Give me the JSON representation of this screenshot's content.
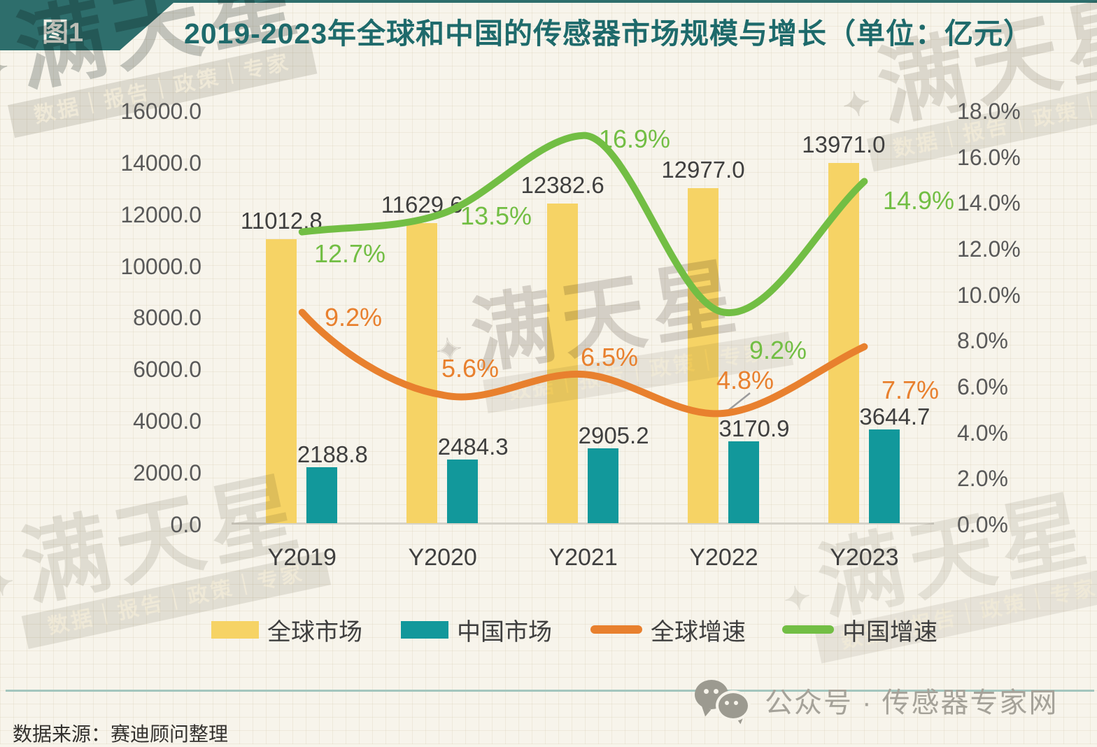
{
  "figure_label": "图1",
  "title": "2019-2023年全球和中国的传感器市场规模与增长（单位：亿元）",
  "source_note": "数据来源：赛迪顾问整理",
  "wechat_badge": "公众号 · 传感器专家网",
  "watermark": {
    "brand": "满天星",
    "star": "✦",
    "tagline": "数据｜报告｜政策｜专家"
  },
  "colors": {
    "background": "#F7F4EB",
    "banner_teal": "#2E6E6C",
    "title_teal": "#1E6A6B",
    "global_bar_yellow": "#F6D365",
    "china_bar_teal": "#12989B",
    "global_growth_orange": "#E8802E",
    "china_growth_green": "#72BE44",
    "axis_text_gray": "#595959",
    "label_text_dark": "#3F3F3F",
    "axis_line_gray": "#D6D3C9",
    "separator_teal": "#A3C6BE",
    "footer_gray": "#A5A299",
    "leader_line_gray": "#9B9B9B"
  },
  "chart_data": {
    "type": "combo-bar-line",
    "categories": [
      "Y2019",
      "Y2020",
      "Y2021",
      "Y2022",
      "Y2023"
    ],
    "series": [
      {
        "name": "全球市场",
        "type": "bar",
        "axis": "left",
        "values": [
          11012.8,
          11629.6,
          12382.6,
          12977.0,
          13971.0
        ]
      },
      {
        "name": "中国市场",
        "type": "bar",
        "axis": "left",
        "values": [
          2188.8,
          2484.3,
          2905.2,
          3170.9,
          3644.7
        ]
      },
      {
        "name": "全球增速",
        "type": "line",
        "axis": "right",
        "values": [
          9.2,
          5.6,
          6.5,
          4.8,
          7.7
        ]
      },
      {
        "name": "中国增速",
        "type": "line",
        "axis": "right",
        "values": [
          12.7,
          13.5,
          16.9,
          9.2,
          14.9
        ]
      }
    ],
    "left_axis": {
      "min": 0,
      "max": 16000,
      "step": 2000,
      "ticks": [
        "16000.0",
        "14000.0",
        "12000.0",
        "10000.0",
        "8000.0",
        "6000.0",
        "4000.0",
        "2000.0",
        "0.0"
      ]
    },
    "right_axis": {
      "min": 0,
      "max": 18,
      "step": 2,
      "ticks": [
        "18.0%",
        "16.0%",
        "14.0%",
        "12.0%",
        "10.0%",
        "8.0%",
        "6.0%",
        "4.0%",
        "2.0%",
        "0.0%"
      ]
    },
    "legend": [
      "全球市场",
      "中国市场",
      "全球增速",
      "中国增速"
    ],
    "grid": "dotted-paper-texture",
    "legend_position": "bottom"
  }
}
